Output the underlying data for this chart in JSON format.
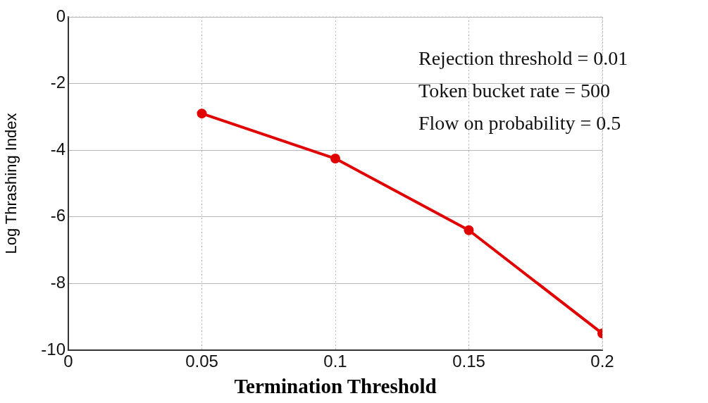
{
  "chart_data": {
    "type": "line",
    "xlabel": "Termination Threshold",
    "ylabel": "Log Thrashing Index",
    "x": [
      0.05,
      0.1,
      0.15,
      0.2
    ],
    "series": [
      {
        "color": "#e00000",
        "values": [
          -2.9,
          -4.25,
          -6.4,
          -9.5
        ]
      }
    ],
    "xlim": [
      0,
      0.2
    ],
    "xticks": [
      0,
      0.05,
      0.1,
      0.15,
      0.2
    ],
    "ylim": [
      -10,
      0
    ],
    "yticks": [
      -10,
      -8,
      -6,
      -4,
      -2,
      0
    ],
    "grid": true,
    "marker": "circle",
    "line_style": "solid",
    "annotations": [
      "Rejection threshold = 0.01",
      "Token bucket rate = 500",
      "Flow on probability = 0.5"
    ]
  }
}
